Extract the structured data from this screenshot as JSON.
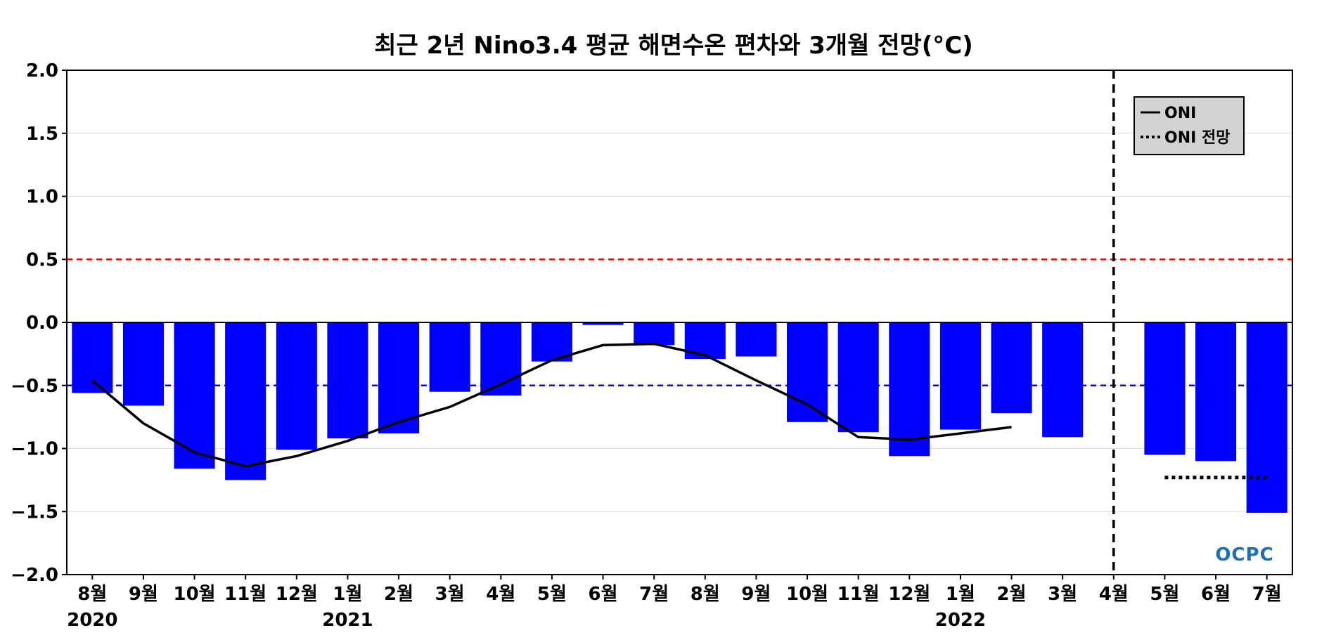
{
  "chart_data": {
    "type": "bar",
    "title": "최근 2년 Nino3.4 평균 해면수온 편차와 3개월 전망(°C)",
    "xlabel": "",
    "ylabel": "",
    "ylim": [
      -2.0,
      2.0
    ],
    "yticks": [
      "2.0",
      "1.5",
      "1.0",
      "0.5",
      "0.0",
      "−0.5",
      "−1.0",
      "−1.5",
      "−2.0"
    ],
    "ytick_values": [
      2.0,
      1.5,
      1.0,
      0.5,
      0.0,
      -0.5,
      -1.0,
      -1.5,
      -2.0
    ],
    "categories": [
      "8월",
      "9월",
      "10월",
      "11월",
      "12월",
      "1월",
      "2월",
      "3월",
      "4월",
      "5월",
      "6월",
      "7월",
      "8월",
      "9월",
      "10월",
      "11월",
      "12월",
      "1월",
      "2월",
      "3월",
      "4월",
      "5월",
      "6월",
      "7월"
    ],
    "year_labels": [
      {
        "index": 0,
        "label": "2020"
      },
      {
        "index": 5,
        "label": "2021"
      },
      {
        "index": 17,
        "label": "2022"
      }
    ],
    "series": [
      {
        "kind": "bar",
        "color": "#0000ff",
        "values": [
          -0.56,
          -0.66,
          -1.16,
          -1.25,
          -1.01,
          -0.92,
          -0.88,
          -0.55,
          -0.58,
          -0.31,
          -0.02,
          -0.18,
          -0.29,
          -0.27,
          -0.79,
          -0.87,
          -1.06,
          -0.85,
          -0.72,
          -0.91,
          null,
          -1.05,
          -1.1,
          -1.51
        ]
      },
      {
        "name": "ONI",
        "kind": "line",
        "color": "#000000",
        "values": [
          -0.46,
          -0.8,
          -1.03,
          -1.14,
          -1.06,
          -0.94,
          -0.79,
          -0.67,
          -0.49,
          -0.3,
          -0.18,
          -0.17,
          -0.26,
          -0.46,
          -0.65,
          -0.91,
          -0.93,
          -0.88,
          -0.83,
          null,
          null,
          null,
          null,
          null
        ]
      },
      {
        "name": "ONI 전망",
        "kind": "line-dotted",
        "color": "#000000",
        "values": [
          null,
          null,
          null,
          null,
          null,
          null,
          null,
          null,
          null,
          null,
          null,
          null,
          null,
          null,
          null,
          null,
          null,
          null,
          null,
          null,
          null,
          -1.23,
          -1.23,
          -1.23
        ]
      }
    ],
    "reference_lines": [
      {
        "y": 0.5,
        "color": "#ff0000",
        "style": "dashed"
      },
      {
        "y": -0.5,
        "color": "#0000ff",
        "style": "dashed"
      },
      {
        "y": 0.0,
        "color": "#000000",
        "style": "solid"
      }
    ],
    "vertical_marker": {
      "index": 20,
      "color": "#000000",
      "style": "dashed"
    },
    "grid": true,
    "legend_position": "top-right",
    "watermark": "OCPC"
  }
}
